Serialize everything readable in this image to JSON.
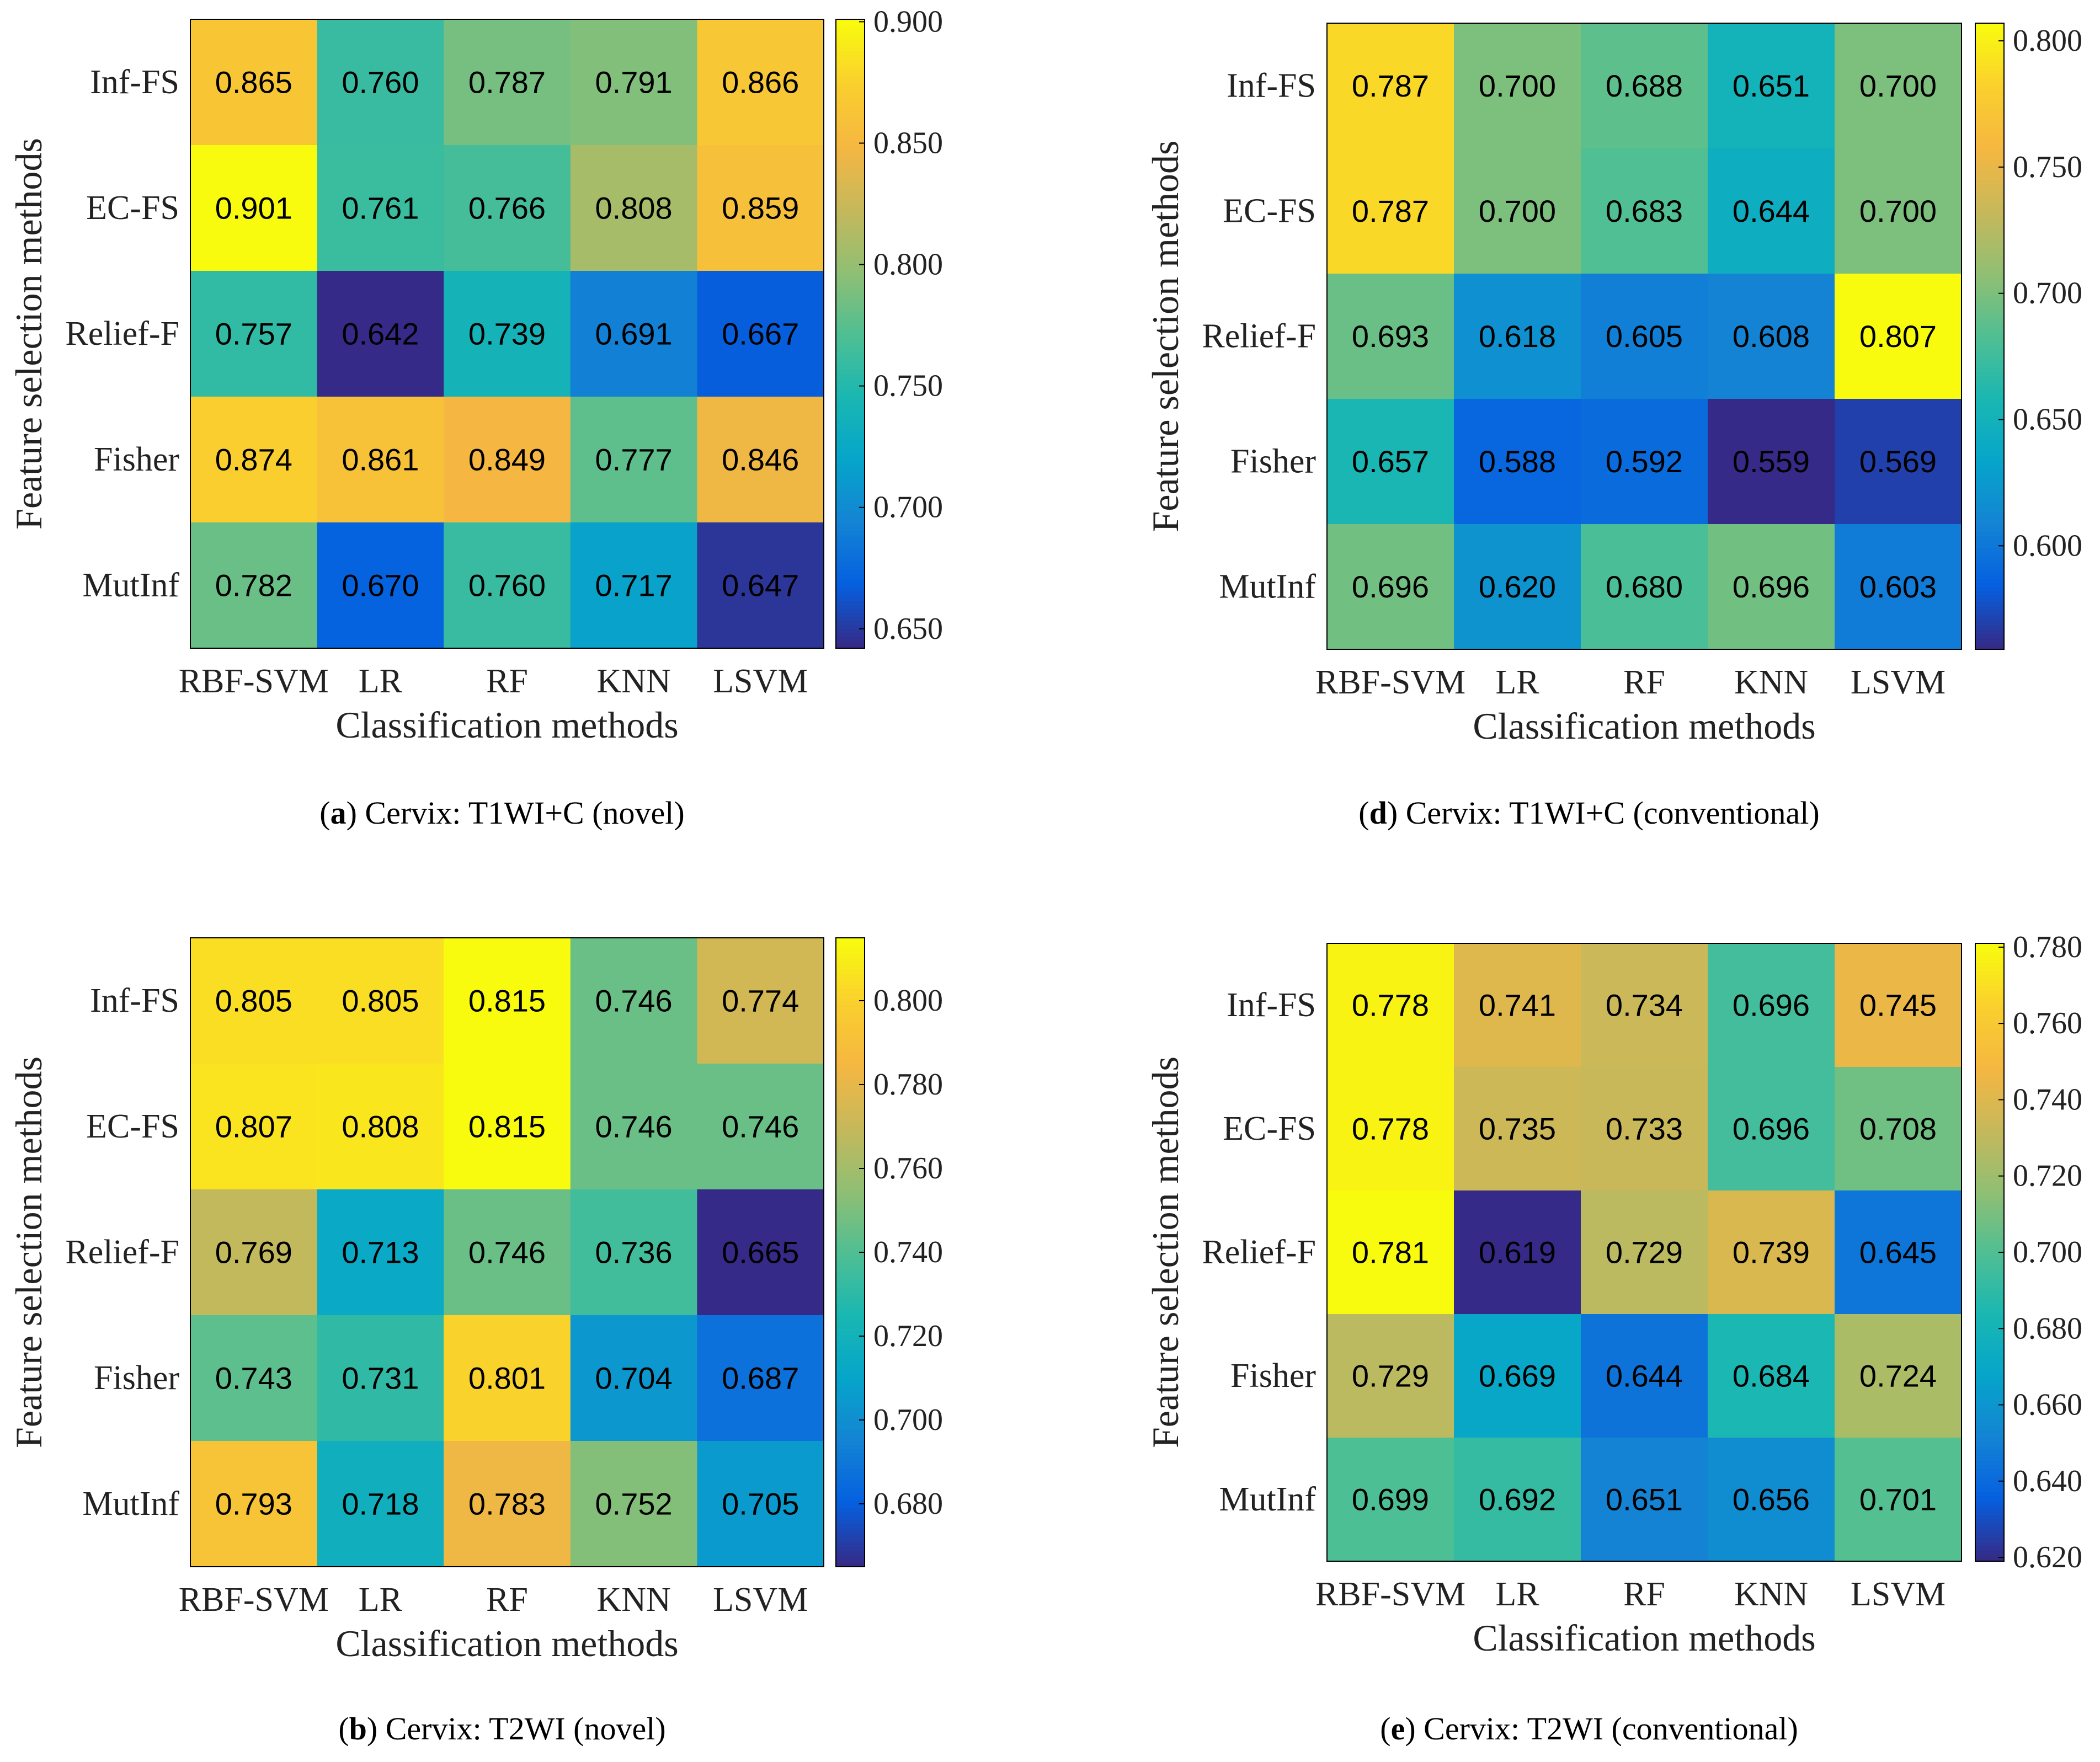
{
  "chart_data": [
    {
      "type": "heatmap",
      "panel_letter": "a",
      "caption_text": " Cervix: T1WI+C (novel)",
      "xlabel": "Classification methods",
      "ylabel": "Feature selection methods",
      "x_categories": [
        "RBF-SVM",
        "LR",
        "RF",
        "KNN",
        "LSVM"
      ],
      "y_categories": [
        "Inf-FS",
        "EC-FS",
        "Relief-F",
        "Fisher",
        "MutInf"
      ],
      "values": [
        [
          0.865,
          0.76,
          0.787,
          0.791,
          0.866
        ],
        [
          0.901,
          0.761,
          0.766,
          0.808,
          0.859
        ],
        [
          0.757,
          0.642,
          0.739,
          0.691,
          0.667
        ],
        [
          0.874,
          0.861,
          0.849,
          0.777,
          0.846
        ],
        [
          0.782,
          0.67,
          0.76,
          0.717,
          0.647
        ]
      ],
      "color_range": [
        0.642,
        0.901
      ],
      "colorbar_ticks": [
        "0.650",
        "0.700",
        "0.750",
        "0.800",
        "0.850",
        "0.900"
      ],
      "colormap": "parula"
    },
    {
      "type": "heatmap",
      "panel_letter": "d",
      "caption_text": " Cervix: T1WI+C (conventional)",
      "xlabel": "Classification methods",
      "ylabel": "Feature selection methods",
      "x_categories": [
        "RBF-SVM",
        "LR",
        "RF",
        "KNN",
        "LSVM"
      ],
      "y_categories": [
        "Inf-FS",
        "EC-FS",
        "Relief-F",
        "Fisher",
        "MutInf"
      ],
      "values": [
        [
          0.787,
          0.7,
          0.688,
          0.651,
          0.7
        ],
        [
          0.787,
          0.7,
          0.683,
          0.644,
          0.7
        ],
        [
          0.693,
          0.618,
          0.605,
          0.608,
          0.807
        ],
        [
          0.657,
          0.588,
          0.592,
          0.559,
          0.569
        ],
        [
          0.696,
          0.62,
          0.68,
          0.696,
          0.603
        ]
      ],
      "color_range": [
        0.559,
        0.807
      ],
      "colorbar_ticks": [
        "0.600",
        "0.650",
        "0.700",
        "0.750",
        "0.800"
      ],
      "colormap": "parula"
    },
    {
      "type": "heatmap",
      "panel_letter": "b",
      "caption_text": " Cervix: T2WI (novel)",
      "xlabel": "Classification methods",
      "ylabel": "Feature selection methods",
      "x_categories": [
        "RBF-SVM",
        "LR",
        "RF",
        "KNN",
        "LSVM"
      ],
      "y_categories": [
        "Inf-FS",
        "EC-FS",
        "Relief-F",
        "Fisher",
        "MutInf"
      ],
      "values": [
        [
          0.805,
          0.805,
          0.815,
          0.746,
          0.774
        ],
        [
          0.807,
          0.808,
          0.815,
          0.746,
          0.746
        ],
        [
          0.769,
          0.713,
          0.746,
          0.736,
          0.665
        ],
        [
          0.743,
          0.731,
          0.801,
          0.704,
          0.687
        ],
        [
          0.793,
          0.718,
          0.783,
          0.752,
          0.705
        ]
      ],
      "color_range": [
        0.665,
        0.815
      ],
      "colorbar_ticks": [
        "0.680",
        "0.700",
        "0.720",
        "0.740",
        "0.760",
        "0.780",
        "0.800"
      ],
      "colormap": "parula"
    },
    {
      "type": "heatmap",
      "panel_letter": "e",
      "caption_text": " Cervix: T2WI (conventional)",
      "xlabel": "Classification methods",
      "ylabel": "Feature selection methods",
      "x_categories": [
        "RBF-SVM",
        "LR",
        "RF",
        "KNN",
        "LSVM"
      ],
      "y_categories": [
        "Inf-FS",
        "EC-FS",
        "Relief-F",
        "Fisher",
        "MutInf"
      ],
      "values": [
        [
          0.778,
          0.741,
          0.734,
          0.696,
          0.745
        ],
        [
          0.778,
          0.735,
          0.733,
          0.696,
          0.708
        ],
        [
          0.781,
          0.619,
          0.729,
          0.739,
          0.645
        ],
        [
          0.729,
          0.669,
          0.644,
          0.684,
          0.724
        ],
        [
          0.699,
          0.692,
          0.651,
          0.656,
          0.701
        ]
      ],
      "color_range": [
        0.619,
        0.781
      ],
      "colorbar_ticks": [
        "0.620",
        "0.640",
        "0.660",
        "0.680",
        "0.700",
        "0.720",
        "0.740",
        "0.760",
        "0.780"
      ],
      "colormap": "parula"
    }
  ]
}
